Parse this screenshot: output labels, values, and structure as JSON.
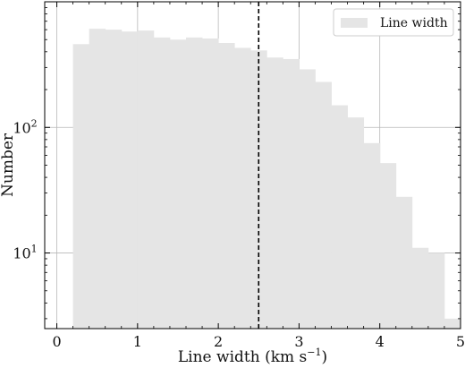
{
  "chart_data": {
    "type": "bar",
    "subtype": "histogram",
    "title": "",
    "xlabel": "Line width (km s",
    "xlabel_superscript": "−1",
    "xlabel_suffix": ")",
    "ylabel": "Number",
    "yscale": "log",
    "xlim": [
      -0.15,
      5.0
    ],
    "ylim": [
      2.5,
      1000
    ],
    "grid": true,
    "legend_placement": "top-right",
    "x_ticks": [
      {
        "value": 0,
        "label": "0"
      },
      {
        "value": 1,
        "label": "1"
      },
      {
        "value": 2,
        "label": "2"
      },
      {
        "value": 3,
        "label": "3"
      },
      {
        "value": 4,
        "label": "4"
      },
      {
        "value": 5,
        "label": "5"
      }
    ],
    "y_major_ticks": [
      {
        "value": 10,
        "base": "10",
        "exp": "1"
      },
      {
        "value": 100,
        "base": "10",
        "exp": "2"
      }
    ],
    "bin_width": 0.2,
    "series": [
      {
        "name": "Line width",
        "color": "#e5e5e5",
        "bins": [
          {
            "x0": 0.2,
            "x1": 0.4,
            "count": 460
          },
          {
            "x0": 0.4,
            "x1": 0.6,
            "count": 610
          },
          {
            "x0": 0.6,
            "x1": 0.8,
            "count": 600
          },
          {
            "x0": 0.8,
            "x1": 1.0,
            "count": 580
          },
          {
            "x0": 1.0,
            "x1": 1.2,
            "count": 590
          },
          {
            "x0": 1.2,
            "x1": 1.4,
            "count": 520
          },
          {
            "x0": 1.4,
            "x1": 1.6,
            "count": 500
          },
          {
            "x0": 1.6,
            "x1": 1.8,
            "count": 520
          },
          {
            "x0": 1.8,
            "x1": 2.0,
            "count": 510
          },
          {
            "x0": 2.0,
            "x1": 2.2,
            "count": 470
          },
          {
            "x0": 2.2,
            "x1": 2.4,
            "count": 430
          },
          {
            "x0": 2.4,
            "x1": 2.6,
            "count": 410
          },
          {
            "x0": 2.6,
            "x1": 2.8,
            "count": 360
          },
          {
            "x0": 2.8,
            "x1": 3.0,
            "count": 350
          },
          {
            "x0": 3.0,
            "x1": 3.2,
            "count": 290
          },
          {
            "x0": 3.2,
            "x1": 3.4,
            "count": 230
          },
          {
            "x0": 3.4,
            "x1": 3.6,
            "count": 150
          },
          {
            "x0": 3.6,
            "x1": 3.8,
            "count": 120
          },
          {
            "x0": 3.8,
            "x1": 4.0,
            "count": 75
          },
          {
            "x0": 4.0,
            "x1": 4.2,
            "count": 52
          },
          {
            "x0": 4.2,
            "x1": 4.4,
            "count": 28
          },
          {
            "x0": 4.4,
            "x1": 4.6,
            "count": 11
          },
          {
            "x0": 4.6,
            "x1": 4.8,
            "count": 10
          },
          {
            "x0": 4.8,
            "x1": 5.0,
            "count": 3
          }
        ]
      }
    ],
    "vline": {
      "x": 2.5,
      "style": "dashed",
      "color": "#000000"
    }
  }
}
